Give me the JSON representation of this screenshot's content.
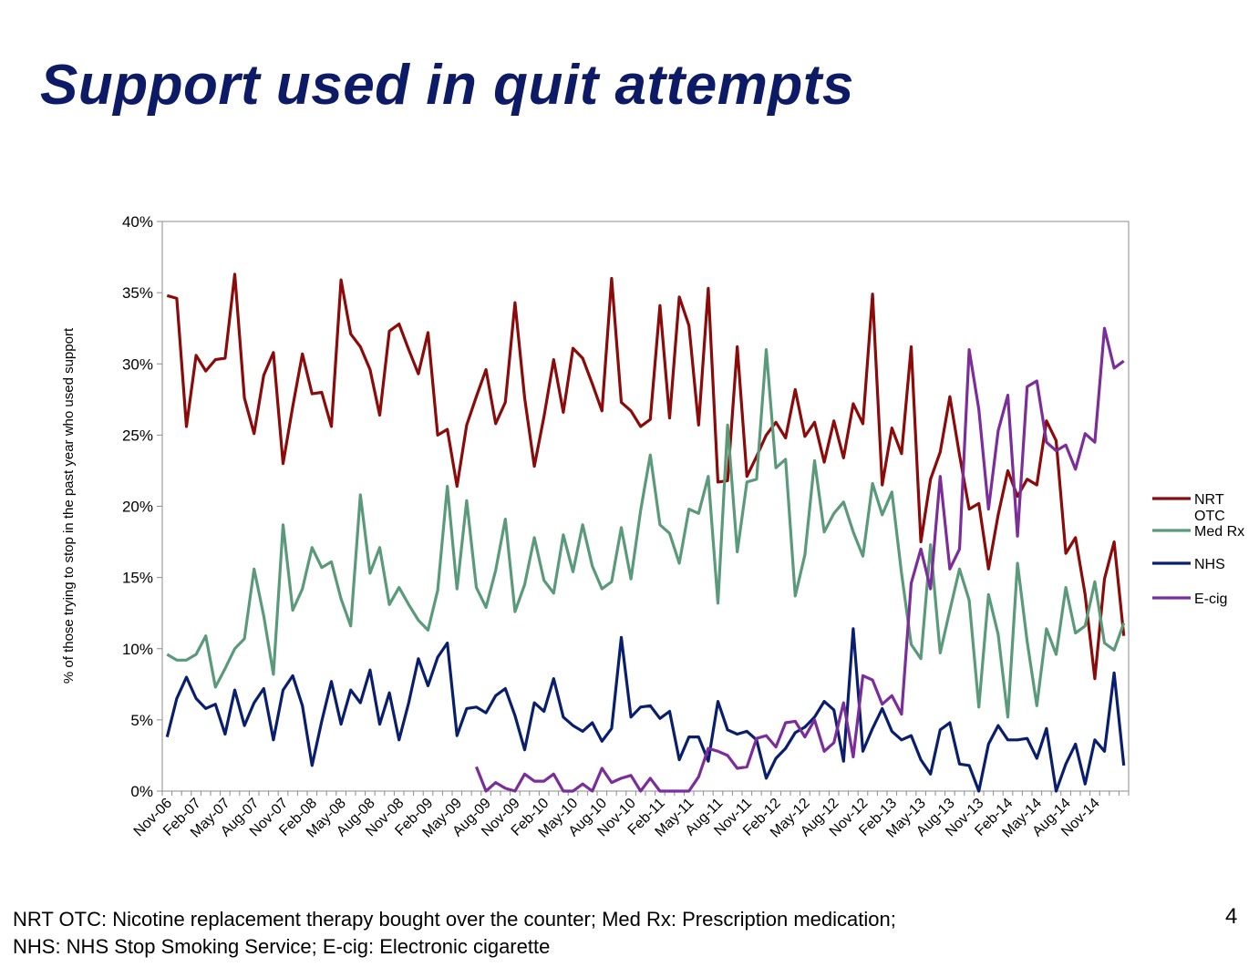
{
  "slide": {
    "title": "Support used in quit attempts",
    "footnote_line1": "NRT OTC: Nicotine replacement therapy bought over the counter; Med Rx: Prescription medication;",
    "footnote_line2": "NHS: NHS Stop Smoking Service; E-cig: Electronic cigarette",
    "page_number": "4"
  },
  "chart_data": {
    "type": "line",
    "title": "",
    "xlabel": "",
    "ylabel": "% of those trying to stop in the past year who used support",
    "ylim": [
      0,
      40
    ],
    "yticks": [
      0,
      5,
      10,
      15,
      20,
      25,
      30,
      35,
      40
    ],
    "ytick_format": "%",
    "grid": false,
    "legend": "right",
    "x_start": "Nov-06",
    "x_end": "Mar-15",
    "x_tick_labels": [
      "Nov-06",
      "Feb-07",
      "May-07",
      "Aug-07",
      "Nov-07",
      "Feb-08",
      "May-08",
      "Aug-08",
      "Nov-08",
      "Feb-09",
      "May-09",
      "Aug-09",
      "Nov-09",
      "Feb-10",
      "May-10",
      "Aug-10",
      "Nov-10",
      "Feb-11",
      "May-11",
      "Aug-11",
      "Nov-11",
      "Feb-12",
      "May-12",
      "Aug-12",
      "Nov-12",
      "Feb-13",
      "May-13",
      "Aug-13",
      "Nov-13",
      "Feb-14",
      "May-14",
      "Aug-14",
      "Nov-14"
    ],
    "series": [
      {
        "name": "NRT OTC",
        "color": "#8b0a0a",
        "values": [
          34.8,
          34.6,
          25.6,
          30.6,
          29.5,
          30.3,
          30.4,
          36.3,
          27.6,
          25.1,
          29.2,
          30.8,
          23.0,
          27.0,
          30.7,
          27.9,
          28.0,
          25.6,
          35.9,
          32.1,
          31.2,
          29.6,
          26.4,
          32.3,
          32.8,
          31.0,
          29.3,
          32.2,
          25.0,
          25.4,
          21.4,
          25.7,
          27.7,
          29.6,
          25.8,
          27.3,
          34.3,
          27.6,
          22.8,
          26.3,
          30.3,
          26.6,
          31.1,
          30.4,
          28.6,
          26.7,
          36.0,
          27.3,
          26.7,
          25.6,
          26.1,
          34.1,
          26.2,
          34.7,
          32.7,
          25.7,
          35.3,
          21.7,
          21.8,
          31.2,
          22.1,
          23.5,
          25.0,
          25.9,
          24.8,
          28.2,
          24.9,
          25.9,
          23.1,
          26.0,
          23.4,
          27.2,
          25.8,
          34.9,
          21.5,
          25.5,
          23.7,
          31.2,
          17.5,
          21.9,
          23.8,
          27.7,
          23.6,
          19.8,
          20.2,
          15.6,
          19.4,
          22.5,
          20.7,
          21.9,
          21.5,
          26.0,
          24.6,
          16.7,
          17.8,
          13.8,
          7.9,
          14.9,
          17.5,
          10.9
        ]
      },
      {
        "name": "Med Rx",
        "color": "#5a9a7a",
        "values": [
          9.6,
          9.2,
          9.2,
          9.6,
          10.9,
          7.3,
          8.6,
          10.0,
          10.7,
          15.6,
          12.3,
          8.2,
          18.7,
          12.7,
          14.2,
          17.1,
          15.7,
          16.1,
          13.5,
          11.6,
          20.8,
          15.3,
          17.1,
          13.1,
          14.3,
          13.1,
          12.0,
          11.3,
          14.1,
          21.4,
          14.2,
          20.4,
          14.3,
          12.9,
          15.5,
          19.1,
          12.6,
          14.5,
          17.8,
          14.8,
          13.9,
          18.0,
          15.4,
          18.7,
          15.8,
          14.2,
          14.7,
          18.5,
          14.9,
          19.7,
          23.6,
          18.7,
          18.1,
          16.0,
          19.8,
          19.5,
          22.1,
          13.2,
          25.7,
          16.8,
          21.7,
          21.9,
          31.0,
          22.7,
          23.3,
          13.7,
          16.6,
          23.2,
          18.2,
          19.5,
          20.3,
          18.2,
          16.5,
          21.6,
          19.4,
          21.0,
          15.3,
          10.3,
          9.3,
          17.3,
          9.7,
          12.7,
          15.6,
          13.4,
          5.9,
          13.8,
          11.0,
          5.2,
          16.0,
          10.5,
          6.0,
          11.4,
          9.6,
          14.3,
          11.1,
          11.6,
          14.7,
          10.4,
          9.9,
          11.8
        ]
      },
      {
        "name": "NHS",
        "color": "#0a1e6e",
        "values": [
          3.8,
          6.5,
          8.0,
          6.5,
          5.8,
          6.1,
          4.0,
          7.1,
          4.6,
          6.2,
          7.2,
          3.6,
          7.1,
          8.1,
          6.0,
          1.8,
          4.9,
          7.7,
          4.7,
          7.1,
          6.2,
          8.5,
          4.7,
          6.9,
          3.6,
          6.2,
          9.3,
          7.4,
          9.4,
          10.4,
          3.9,
          5.8,
          5.9,
          5.5,
          6.7,
          7.2,
          5.3,
          2.9,
          6.2,
          5.6,
          7.9,
          5.2,
          4.6,
          4.2,
          4.8,
          3.5,
          4.4,
          10.8,
          5.2,
          5.9,
          6.0,
          5.1,
          5.6,
          2.2,
          3.8,
          3.8,
          2.1,
          6.3,
          4.3,
          4.0,
          4.2,
          3.6,
          0.9,
          2.3,
          3.0,
          4.1,
          4.5,
          5.2,
          6.3,
          5.7,
          2.1,
          11.4,
          2.8,
          4.4,
          5.8,
          4.2,
          3.6,
          3.9,
          2.2,
          1.2,
          4.3,
          4.8,
          1.9,
          1.8,
          0.0,
          3.3,
          4.6,
          3.6,
          3.6,
          3.7,
          2.3,
          4.4,
          0.0,
          1.9,
          3.3,
          0.5,
          3.6,
          2.8,
          8.3,
          1.8
        ]
      },
      {
        "name": "E-cig",
        "color": "#7b2d9a",
        "values": [
          null,
          null,
          null,
          null,
          null,
          null,
          null,
          null,
          null,
          null,
          null,
          null,
          null,
          null,
          null,
          null,
          null,
          null,
          null,
          null,
          null,
          null,
          null,
          null,
          null,
          null,
          null,
          null,
          null,
          null,
          null,
          null,
          1.7,
          0.0,
          0.6,
          0.2,
          0.0,
          1.2,
          0.7,
          0.7,
          1.2,
          0.0,
          0.0,
          0.5,
          0.0,
          1.6,
          0.6,
          0.9,
          1.1,
          0.0,
          0.9,
          0.0,
          0.0,
          0.0,
          0.0,
          1.0,
          3.0,
          2.8,
          2.5,
          1.6,
          1.7,
          3.7,
          3.9,
          3.1,
          4.8,
          4.9,
          3.8,
          5.0,
          2.8,
          3.4,
          6.2,
          2.4,
          8.1,
          7.8,
          6.1,
          6.7,
          5.4,
          14.6,
          17.0,
          14.2,
          22.1,
          15.6,
          17.0,
          31.0,
          26.8,
          19.8,
          25.3,
          27.8,
          17.9,
          28.4,
          28.8,
          24.5,
          23.9,
          24.3,
          22.6,
          25.1,
          24.5,
          32.5,
          29.7,
          30.2
        ]
      }
    ]
  }
}
